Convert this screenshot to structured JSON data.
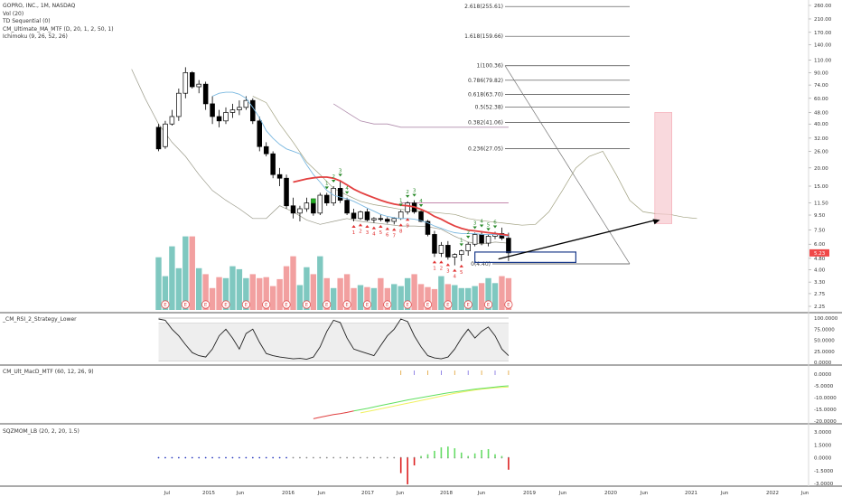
{
  "chart_data": {
    "type": "candlestick",
    "legend": [
      "GOPRO, INC., 1M, NASDAQ",
      "Vol (20)",
      "TD Sequential (0)",
      "CM_Ultimate_MA_MTF (D, 20, 1, 2, 50, 1)",
      "Ichimoku (9, 26, 52, 26)"
    ],
    "price_axis": {
      "scale": "log",
      "ticks": [
        260.0,
        210.0,
        170.0,
        140.0,
        110.0,
        90.0,
        74.0,
        60.0,
        48.0,
        40.0,
        32.0,
        26.0,
        20.0,
        15.0,
        11.5,
        9.5,
        7.5,
        6.0,
        4.8,
        4.0,
        3.3,
        2.75,
        2.25
      ],
      "tick_labels": [
        "260.00",
        "210.00",
        "170.00",
        "140.00",
        "110.00",
        "90.00",
        "74.00",
        "60.00",
        "48.00",
        "40.00",
        "32.00",
        "26.00",
        "20.00",
        "15.00",
        "11.50",
        "9.50",
        "7.50",
        "6.00",
        "4.80",
        "4.00",
        "3.30",
        "2.75",
        "2.25"
      ],
      "current_price": 5.23,
      "current_label": "5.23"
    },
    "time_axis_labels": [
      "Jul",
      "2015",
      "Jun",
      "2016",
      "Jun",
      "2017",
      "Jun",
      "2018",
      "Jun",
      "2019",
      "Jun",
      "2020",
      "Jun",
      "2021",
      "Jun",
      "2022",
      "Jun"
    ],
    "fibonacci": [
      {
        "label": "2.618(255.61)",
        "value": 255.61
      },
      {
        "label": "1.618(159.66)",
        "value": 159.66
      },
      {
        "label": "1(100.36)",
        "value": 100.36
      },
      {
        "label": "0.786(79.82)",
        "value": 79.82
      },
      {
        "label": "0.618(63.70)",
        "value": 63.7
      },
      {
        "label": "0.5(52.38)",
        "value": 52.38
      },
      {
        "label": "0.382(41.06)",
        "value": 41.06
      },
      {
        "label": "0.236(27.05)",
        "value": 27.05
      },
      {
        "label": "0(4.40)",
        "value": 4.4
      }
    ],
    "candles": [
      [
        0,
        38,
        40,
        26,
        27
      ],
      [
        1,
        28,
        42,
        27,
        40
      ],
      [
        2,
        40,
        50,
        39,
        45
      ],
      [
        3,
        45,
        70,
        42,
        65
      ],
      [
        4,
        65,
        98,
        60,
        90
      ],
      [
        5,
        90,
        92,
        70,
        72
      ],
      [
        6,
        72,
        80,
        65,
        75
      ],
      [
        7,
        75,
        78,
        50,
        55
      ],
      [
        8,
        55,
        62,
        40,
        45
      ],
      [
        9,
        45,
        50,
        38,
        42
      ],
      [
        10,
        42,
        52,
        40,
        48
      ],
      [
        11,
        48,
        55,
        44,
        50
      ],
      [
        12,
        50,
        58,
        46,
        52
      ],
      [
        13,
        52,
        62,
        50,
        58
      ],
      [
        14,
        58,
        60,
        40,
        42
      ],
      [
        15,
        42,
        45,
        26,
        28
      ],
      [
        16,
        28,
        30,
        24,
        25
      ],
      [
        17,
        25,
        26,
        17,
        18
      ],
      [
        18,
        18,
        20,
        15,
        17
      ],
      [
        19,
        17,
        18,
        10.5,
        11
      ],
      [
        20,
        11,
        12.5,
        9,
        9.8
      ],
      [
        21,
        9.8,
        11,
        8.6,
        10.5
      ],
      [
        22,
        10.5,
        12.5,
        10,
        11.5
      ],
      [
        23,
        11.5,
        12,
        9.4,
        9.8
      ],
      [
        24,
        9.8,
        13.5,
        9.5,
        13
      ],
      [
        25,
        13,
        13.5,
        11,
        11.5
      ],
      [
        26,
        11.5,
        15,
        11,
        14.5
      ],
      [
        27,
        14.5,
        16.5,
        11.5,
        12
      ],
      [
        28,
        12,
        12.5,
        9.5,
        9.8
      ],
      [
        29,
        9.8,
        10.5,
        8.6,
        9
      ],
      [
        30,
        9,
        10.2,
        8.8,
        10
      ],
      [
        31,
        10,
        10.5,
        8.6,
        8.8
      ],
      [
        32,
        8.8,
        9.2,
        8.4,
        9
      ],
      [
        33,
        9,
        9.6,
        8.6,
        8.9
      ],
      [
        34,
        8.9,
        9.2,
        8.3,
        8.6
      ],
      [
        35,
        8.6,
        9.2,
        8.2,
        9
      ],
      [
        36,
        9,
        10.3,
        8.8,
        10
      ],
      [
        37,
        10,
        11.8,
        9.6,
        11.5
      ],
      [
        38,
        11.5,
        12,
        9.7,
        10
      ],
      [
        39,
        10,
        10.2,
        8.5,
        8.6
      ],
      [
        40,
        8.6,
        8.8,
        6.8,
        7
      ],
      [
        41,
        7,
        7.4,
        4.9,
        5.2
      ],
      [
        42,
        5.2,
        6.2,
        4.9,
        5.9
      ],
      [
        43,
        5.9,
        6.3,
        4.7,
        4.9
      ],
      [
        44,
        4.9,
        5.2,
        4.3,
        5.1
      ],
      [
        45,
        5.1,
        5.5,
        4.6,
        5.4
      ],
      [
        46,
        5.4,
        6.2,
        5,
        6
      ],
      [
        47,
        6,
        7.2,
        5.8,
        7
      ],
      [
        48,
        7,
        7.4,
        5.9,
        6.1
      ],
      [
        49,
        6.1,
        7,
        5.8,
        6.8
      ],
      [
        50,
        6.8,
        7.3,
        6.5,
        7.1
      ],
      [
        51,
        7.1,
        7.8,
        6.4,
        6.6
      ],
      [
        52,
        6.6,
        7.2,
        4.6,
        5.23
      ]
    ],
    "ma_red": [
      [
        20,
        16
      ],
      [
        21,
        16.4
      ],
      [
        22,
        16.8
      ],
      [
        23,
        17.1
      ],
      [
        24,
        17.3
      ],
      [
        25,
        17.3
      ],
      [
        26,
        17
      ],
      [
        27,
        16.3
      ],
      [
        28,
        15.3
      ],
      [
        29,
        14.3
      ],
      [
        30,
        13.6
      ],
      [
        31,
        13.0
      ],
      [
        32,
        12.5
      ],
      [
        33,
        12.0
      ],
      [
        34,
        11.6
      ],
      [
        35,
        11.3
      ],
      [
        36,
        11.1
      ],
      [
        37,
        11.0
      ],
      [
        38,
        10.8
      ],
      [
        39,
        10.4
      ],
      [
        40,
        9.9
      ],
      [
        41,
        9.3
      ],
      [
        42,
        8.9
      ],
      [
        43,
        8.4
      ],
      [
        44,
        8.0
      ],
      [
        45,
        7.7
      ],
      [
        46,
        7.5
      ],
      [
        47,
        7.4
      ],
      [
        48,
        7.3
      ],
      [
        49,
        7.2
      ],
      [
        50,
        7.1
      ],
      [
        51,
        7.0
      ],
      [
        52,
        6.9
      ]
    ],
    "ma_blue": [
      [
        8,
        62
      ],
      [
        9,
        65
      ],
      [
        10,
        66
      ],
      [
        11,
        66
      ],
      [
        12,
        64
      ],
      [
        13,
        60
      ],
      [
        14,
        52
      ],
      [
        15,
        44
      ],
      [
        16,
        36
      ],
      [
        17,
        32
      ],
      [
        18,
        29
      ],
      [
        19,
        27
      ],
      [
        20,
        26
      ],
      [
        21,
        25
      ],
      [
        22,
        21
      ],
      [
        23,
        18
      ],
      [
        24,
        16
      ],
      [
        25,
        14
      ],
      [
        26,
        13
      ],
      [
        27,
        12.6
      ],
      [
        28,
        12.3
      ],
      [
        29,
        11.8
      ],
      [
        30,
        11.2
      ],
      [
        31,
        10.6
      ],
      [
        32,
        10.1
      ],
      [
        33,
        9.6
      ],
      [
        34,
        9.3
      ],
      [
        35,
        9.1
      ],
      [
        36,
        9.0
      ],
      [
        37,
        9.0
      ],
      [
        38,
        8.9
      ],
      [
        39,
        8.7
      ],
      [
        40,
        8.4
      ],
      [
        41,
        8.0
      ],
      [
        42,
        7.7
      ],
      [
        43,
        7.4
      ],
      [
        44,
        7.2
      ],
      [
        45,
        7.1
      ],
      [
        46,
        7.1
      ],
      [
        47,
        7.1
      ],
      [
        48,
        7.0
      ],
      [
        49,
        7.0
      ],
      [
        50,
        7.0
      ],
      [
        51,
        6.9
      ],
      [
        52,
        6.8
      ]
    ],
    "cloud_gray": [
      [
        -4,
        95
      ],
      [
        -2,
        60
      ],
      [
        0,
        40
      ],
      [
        2,
        30
      ],
      [
        4,
        24
      ],
      [
        6,
        18
      ],
      [
        8,
        14
      ],
      [
        10,
        12
      ],
      [
        12,
        10.5
      ],
      [
        14,
        9
      ],
      [
        16,
        9
      ],
      [
        18,
        11
      ],
      [
        20,
        10
      ],
      [
        22,
        8.8
      ],
      [
        24,
        8.2
      ],
      [
        26,
        8.6
      ],
      [
        28,
        9
      ],
      [
        30,
        8.6
      ],
      [
        32,
        8.4
      ],
      [
        34,
        8.2
      ],
      [
        36,
        8.0
      ],
      [
        38,
        8.0
      ],
      [
        40,
        7.9
      ],
      [
        42,
        7.6
      ],
      [
        44,
        6.8
      ],
      [
        46,
        6.2
      ],
      [
        48,
        6.0
      ],
      [
        50,
        6.2
      ],
      [
        52,
        6.1
      ]
    ],
    "cloud_olive": [
      [
        14,
        62
      ],
      [
        16,
        56
      ],
      [
        18,
        40
      ],
      [
        20,
        30
      ],
      [
        22,
        22
      ],
      [
        24,
        18
      ],
      [
        26,
        14.5
      ],
      [
        28,
        13
      ],
      [
        30,
        11.8
      ],
      [
        32,
        11.2
      ],
      [
        34,
        10.8
      ],
      [
        36,
        10.4
      ],
      [
        38,
        10.2
      ],
      [
        40,
        10.0
      ],
      [
        42,
        9.8
      ],
      [
        44,
        9.6
      ],
      [
        46,
        9.0
      ],
      [
        48,
        8.7
      ],
      [
        50,
        8.5
      ],
      [
        52,
        8.3
      ],
      [
        54,
        8.1
      ],
      [
        56,
        8.2
      ],
      [
        58,
        10
      ],
      [
        60,
        14
      ],
      [
        62,
        20
      ],
      [
        64,
        24
      ],
      [
        66,
        26
      ],
      [
        68,
        18
      ],
      [
        70,
        12
      ],
      [
        72,
        10
      ],
      [
        74,
        9.7
      ],
      [
        76,
        9.6
      ],
      [
        78,
        9.2
      ],
      [
        80,
        9.0
      ]
    ],
    "cloud_mauve": [
      [
        26,
        55
      ],
      [
        28,
        48
      ],
      [
        30,
        42
      ],
      [
        32,
        40
      ],
      [
        34,
        40
      ],
      [
        36,
        38
      ],
      [
        38,
        38
      ],
      [
        40,
        38
      ],
      [
        42,
        38
      ],
      [
        44,
        38
      ],
      [
        46,
        38
      ],
      [
        48,
        38
      ],
      [
        50,
        38
      ],
      [
        52,
        38
      ]
    ],
    "mauve_flat": [
      [
        36,
        11.5
      ],
      [
        52,
        11.5
      ]
    ],
    "pink_box": {
      "x0": 74,
      "x1": 76,
      "top": 48,
      "bottom": 8.3
    },
    "volume": [
      5.3,
      3.4,
      6.4,
      4.2,
      7.4,
      7.4,
      4.2,
      3.6,
      2.2,
      3.3,
      3.2,
      4.4,
      4.1,
      3.2,
      3.6,
      3.2,
      3.3,
      2.4,
      3.1,
      4.4,
      5.4,
      2.5,
      4.3,
      3.6,
      5.4,
      3.2,
      2.2,
      3.2,
      3.6,
      2.2,
      2.5,
      2.3,
      2.2,
      3.2,
      2.2,
      2.6,
      2.4,
      3.2,
      3.6,
      2.6,
      2.3,
      2.1,
      3.4,
      2.6,
      2.5,
      2.2,
      2.2,
      2.4,
      2.7,
      3.2,
      2.7,
      3.4,
      3.2
    ],
    "volume_colors": [
      "t",
      "t",
      "t",
      "t",
      "t",
      "r",
      "t",
      "r",
      "r",
      "r",
      "t",
      "t",
      "t",
      "t",
      "r",
      "r",
      "r",
      "r",
      "r",
      "r",
      "r",
      "t",
      "t",
      "r",
      "t",
      "r",
      "t",
      "r",
      "r",
      "r",
      "t",
      "r",
      "t",
      "r",
      "r",
      "t",
      "t",
      "t",
      "r",
      "r",
      "r",
      "r",
      "t",
      "r",
      "t",
      "t",
      "t",
      "t",
      "r",
      "t",
      "t",
      "r",
      "r"
    ],
    "earnings_markers": [
      1,
      4,
      7,
      10,
      13,
      16,
      19,
      22,
      25,
      28,
      31,
      34,
      37,
      40,
      43,
      46,
      49,
      52
    ],
    "earnings_label": "E",
    "td_green": [
      [
        25,
        "1"
      ],
      [
        26,
        "2"
      ],
      [
        27,
        "3"
      ],
      [
        28,
        "4"
      ],
      [
        36,
        "1"
      ],
      [
        37,
        "2"
      ],
      [
        38,
        "3"
      ],
      [
        39,
        "4"
      ],
      [
        45,
        "1"
      ],
      [
        46,
        "2"
      ],
      [
        47,
        "3"
      ],
      [
        48,
        "4"
      ],
      [
        49,
        "5"
      ],
      [
        50,
        "6"
      ]
    ],
    "td_red": [
      [
        29,
        "1"
      ],
      [
        30,
        "2"
      ],
      [
        31,
        "3"
      ],
      [
        32,
        "4"
      ],
      [
        33,
        "5"
      ],
      [
        34,
        "6"
      ],
      [
        35,
        "7"
      ],
      [
        36,
        "8"
      ],
      [
        37,
        "9"
      ],
      [
        41,
        "1"
      ],
      [
        42,
        "2"
      ],
      [
        43,
        "3"
      ],
      [
        44,
        "4"
      ],
      [
        45,
        "5"
      ]
    ],
    "rsi": {
      "label": "_CM_RSI_2_Strategy_Lower",
      "ticks": [
        100,
        75,
        50,
        25,
        0
      ],
      "tick_labels": [
        "100.0000",
        "75.0000",
        "50.0000",
        "25.0000",
        "0.0000"
      ],
      "values": [
        98,
        95,
        75,
        60,
        40,
        22,
        15,
        12,
        30,
        60,
        75,
        55,
        30,
        65,
        75,
        45,
        20,
        15,
        12,
        10,
        8,
        9,
        7,
        12,
        35,
        70,
        95,
        90,
        55,
        30,
        25,
        20,
        15,
        38,
        60,
        75,
        98,
        92,
        60,
        35,
        15,
        10,
        8,
        12,
        30,
        55,
        75,
        55,
        70,
        80,
        60,
        30,
        15
      ]
    },
    "macd": {
      "label": "CM_Ult_MacD_MTF (60, 12, 26, 9)",
      "ticks": [
        0,
        -5,
        -10,
        -15,
        -20
      ],
      "tick_labels": [
        "0.0000",
        "-5.0000",
        "-10.0000",
        "-15.0000",
        "-20.0000"
      ],
      "red": [
        [
          23,
          -19
        ],
        [
          24,
          -18.4
        ],
        [
          25,
          -17.8
        ],
        [
          26,
          -17.2
        ],
        [
          27,
          -16.8
        ],
        [
          28,
          -16.3
        ],
        [
          29,
          -15.7
        ]
      ],
      "green": [
        [
          29,
          -15.7
        ],
        [
          31,
          -14.6
        ],
        [
          33,
          -13.4
        ],
        [
          35,
          -12.2
        ],
        [
          37,
          -11
        ],
        [
          39,
          -10
        ],
        [
          41,
          -9
        ],
        [
          43,
          -8
        ],
        [
          45,
          -7.2
        ],
        [
          47,
          -6.4
        ],
        [
          49,
          -5.8
        ],
        [
          51,
          -5.2
        ],
        [
          52,
          -5
        ]
      ],
      "yellow": [
        [
          30,
          -16.5
        ],
        [
          32,
          -15.4
        ],
        [
          34,
          -14.2
        ],
        [
          36,
          -13
        ],
        [
          38,
          -11.8
        ],
        [
          40,
          -10.6
        ],
        [
          42,
          -9.4
        ],
        [
          44,
          -8.2
        ],
        [
          46,
          -7.2
        ],
        [
          48,
          -6.4
        ],
        [
          50,
          -5.8
        ],
        [
          52,
          -5.5
        ]
      ]
    },
    "squeeze": {
      "label": "SQZMOM_LB (20, 2, 20, 1.5)",
      "ticks": [
        3,
        1.5,
        0,
        -1.5,
        -3
      ],
      "tick_labels": [
        "3.0000",
        "1.5000",
        "0.0000",
        "-1.5000",
        "-3.0000"
      ],
      "values": [
        [
          36,
          -1.8
        ],
        [
          37,
          -3.1
        ],
        [
          38,
          -0.9
        ],
        [
          39,
          0.2
        ],
        [
          40,
          0.4
        ],
        [
          41,
          0.8
        ],
        [
          42,
          1.2
        ],
        [
          43,
          1.3
        ],
        [
          44,
          1.1
        ],
        [
          45,
          0.6
        ],
        [
          46,
          0.2
        ],
        [
          47,
          0.5
        ],
        [
          48,
          0.9
        ],
        [
          49,
          1.0
        ],
        [
          50,
          0.4
        ],
        [
          51,
          0.2
        ],
        [
          52,
          -1.4
        ]
      ]
    }
  }
}
